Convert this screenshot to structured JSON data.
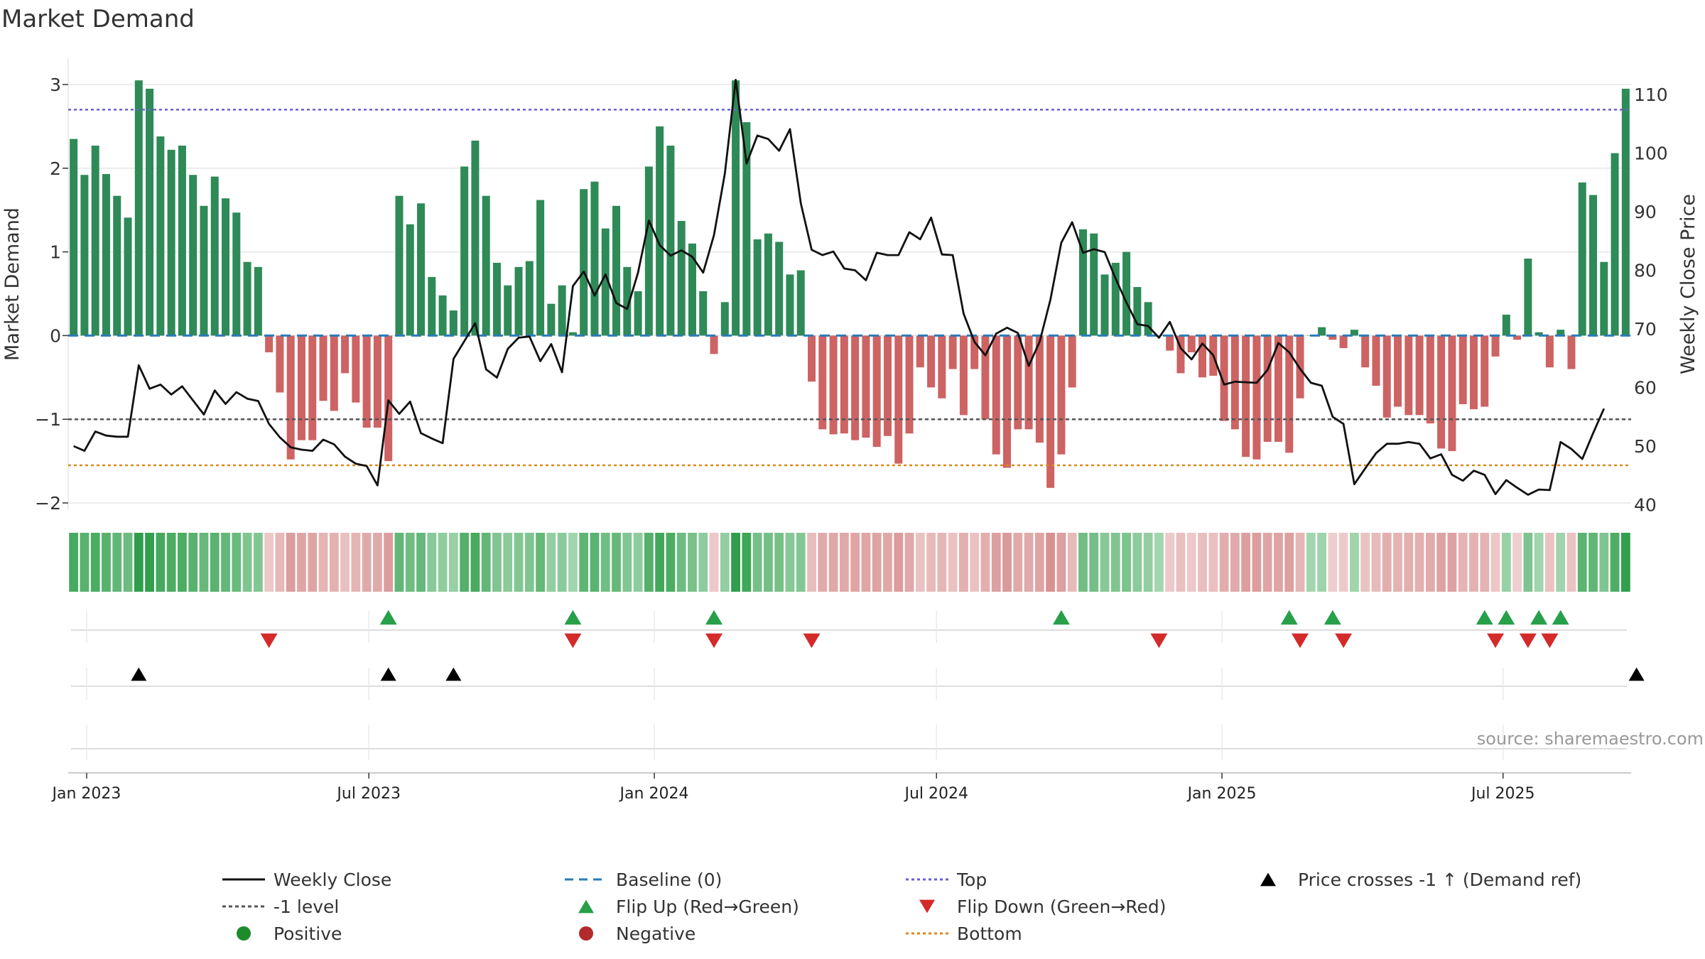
{
  "chart_data": {
    "type": "bar",
    "title": "Market Demand",
    "ylabel": "Market Demand",
    "y2label": "Weekly Close Price",
    "ylim": [
      -2.1,
      3.1
    ],
    "y2lim": [
      38,
      113
    ],
    "yticks": [
      -2,
      -1,
      0,
      1,
      2,
      3
    ],
    "yticklabels": [
      "−2",
      "−1",
      "0",
      "1",
      "2",
      "3"
    ],
    "y2ticks": [
      40,
      50,
      60,
      70,
      80,
      90,
      100,
      110
    ],
    "xticks": [
      {
        "label": "Jan 2023",
        "week": 1.2
      },
      {
        "label": "Jul 2023",
        "week": 27.2
      },
      {
        "label": "Jan 2024",
        "week": 53.5
      },
      {
        "label": "Jul 2024",
        "week": 79.5
      },
      {
        "label": "Jan 2025",
        "week": 105.8
      },
      {
        "label": "Jul 2025",
        "week": 131.7
      }
    ],
    "reference_lines": {
      "top": 2.7,
      "bottom": -1.55,
      "minus_one": -1.0,
      "baseline": 0
    },
    "demand": [
      2.35,
      1.92,
      2.27,
      1.93,
      1.67,
      1.41,
      3.05,
      2.95,
      2.38,
      2.22,
      2.27,
      1.92,
      1.55,
      1.9,
      1.64,
      1.47,
      0.88,
      0.82,
      -0.2,
      -0.68,
      -1.48,
      -1.25,
      -1.25,
      -0.78,
      -0.9,
      -0.45,
      -0.8,
      -1.1,
      -1.1,
      -1.5,
      1.67,
      1.33,
      1.58,
      0.7,
      0.48,
      0.3,
      2.02,
      2.33,
      1.67,
      0.87,
      0.6,
      0.82,
      0.89,
      1.62,
      0.38,
      0.6,
      0.04,
      1.75,
      1.84,
      1.28,
      1.55,
      0.82,
      0.53,
      2.02,
      2.5,
      2.27,
      1.37,
      1.1,
      0.53,
      -0.22,
      0.4,
      3.05,
      2.55,
      1.15,
      1.22,
      1.12,
      0.73,
      0.78,
      -0.55,
      -1.12,
      -1.18,
      -1.17,
      -1.25,
      -1.22,
      -1.33,
      -1.2,
      -1.53,
      -1.17,
      -0.38,
      -0.62,
      -0.75,
      -0.4,
      -0.95,
      -0.4,
      -1.0,
      -1.42,
      -1.58,
      -1.12,
      -1.12,
      -1.28,
      -1.82,
      -1.42,
      -0.62,
      1.27,
      1.22,
      0.73,
      0.87,
      1.0,
      0.58,
      0.4,
      0.0,
      -0.18,
      -0.45,
      -0.2,
      -0.5,
      -0.48,
      -1.02,
      -1.12,
      -1.45,
      -1.48,
      -1.27,
      -1.27,
      -1.4,
      -0.75,
      0.0,
      0.1,
      -0.05,
      -0.15,
      0.07,
      -0.38,
      -0.6,
      -0.98,
      -0.85,
      -0.95,
      -0.95,
      -1.05,
      -1.35,
      -1.38,
      -0.82,
      -0.88,
      -0.85,
      -0.25,
      0.25,
      -0.05,
      0.92,
      0.04,
      -0.38,
      0.07,
      -0.4,
      1.83,
      1.68,
      0.88,
      2.18,
      2.95
    ],
    "weekly_close": [
      50,
      49.2,
      52.5,
      51.8,
      51.6,
      51.6,
      63.8,
      59.8,
      60.5,
      58.8,
      60.2,
      57.8,
      55.4,
      59.5,
      57.2,
      59.2,
      58.1,
      57.7,
      53.8,
      51.5,
      49.8,
      49.4,
      49.2,
      51.1,
      50.3,
      48.2,
      47,
      46.6,
      43.3,
      57.8,
      55.5,
      57.6,
      52.2,
      51.3,
      50.5,
      64.9,
      67.9,
      71,
      63.1,
      61.7,
      66.6,
      68.5,
      68.7,
      64.5,
      67.4,
      62.6,
      77.3,
      79.8,
      75.7,
      79.3,
      74.4,
      73.4,
      79.6,
      88.5,
      84.3,
      82.5,
      83.4,
      82.3,
      79.6,
      86,
      96.5,
      112.5,
      98.2,
      103,
      102.4,
      100.4,
      104.1,
      91.4,
      83.5,
      82.6,
      83.2,
      80.3,
      80,
      78.3,
      83,
      82.6,
      82.6,
      86.5,
      85.3,
      89,
      82.7,
      82.6,
      72.6,
      67.8,
      65.5,
      69.2,
      70.2,
      69.3,
      63.7,
      67.8,
      75,
      84.7,
      88.2,
      83,
      83.6,
      83.1,
      78.6,
      74.5,
      70.8,
      70.5,
      68.5,
      71.2,
      66.7,
      64.8,
      67.5,
      65.5,
      60.5,
      61,
      60.9,
      60.8,
      63,
      67.6,
      66,
      63.2,
      60.8,
      60.3,
      55,
      53.8,
      43.5,
      46.2,
      48.8,
      50.4,
      50.4,
      50.7,
      50.4,
      47.9,
      48.6,
      45.1,
      44.1,
      45.8,
      45.1,
      41.8,
      44.2,
      42.9,
      41.7,
      42.6,
      42.5,
      50.7,
      49.5,
      47.8,
      52.2,
      56.4
    ],
    "flip_up_weeks": [
      29,
      46,
      59,
      91,
      112,
      116,
      130,
      132,
      135,
      137
    ],
    "flip_down_weeks": [
      18,
      46,
      59,
      68,
      100,
      113,
      117,
      131,
      134,
      136
    ],
    "price_cross_weeks": [
      6,
      29,
      35,
      144
    ],
    "legend": [
      {
        "label": "Weekly Close",
        "kind": "line",
        "color": "#111111",
        "dash": ""
      },
      {
        "label": "-1 level",
        "kind": "line",
        "color": "#555555",
        "dash": "5,4"
      },
      {
        "label": "Positive",
        "kind": "dot",
        "color": "#1e8a2c"
      },
      {
        "label": "Baseline (0)",
        "kind": "line",
        "color": "#2b7bb9",
        "dash": "12,8"
      },
      {
        "label": "Flip Up (Red→Green)",
        "kind": "tri-up",
        "color": "#27a049"
      },
      {
        "label": "Negative",
        "kind": "dot",
        "color": "#b22a2a"
      },
      {
        "label": "Top",
        "kind": "line",
        "color": "#6a5fd1",
        "dash": "4,4"
      },
      {
        "label": "Flip Down (Green→Red)",
        "kind": "tri-down",
        "color": "#d42a2a"
      },
      {
        "label": "Bottom",
        "kind": "line",
        "color": "#d88a1c",
        "dash": "4,4"
      },
      {
        "label": "Price crosses -1 ↑ (Demand ref)",
        "kind": "tri-up",
        "color": "#000000"
      }
    ],
    "colors": {
      "positive": "#2e8a57",
      "negative": "#cd6363",
      "close": "#111111",
      "top": "#6a5fd1",
      "bottom": "#d88a1c",
      "minus_one": "#555555",
      "baseline": "#2b7bb9",
      "flip_up": "#27a049",
      "flip_down": "#d42a2a",
      "cross": "#000000",
      "grid": "#e6e6e6"
    },
    "source": "source: sharemaestro.com"
  }
}
